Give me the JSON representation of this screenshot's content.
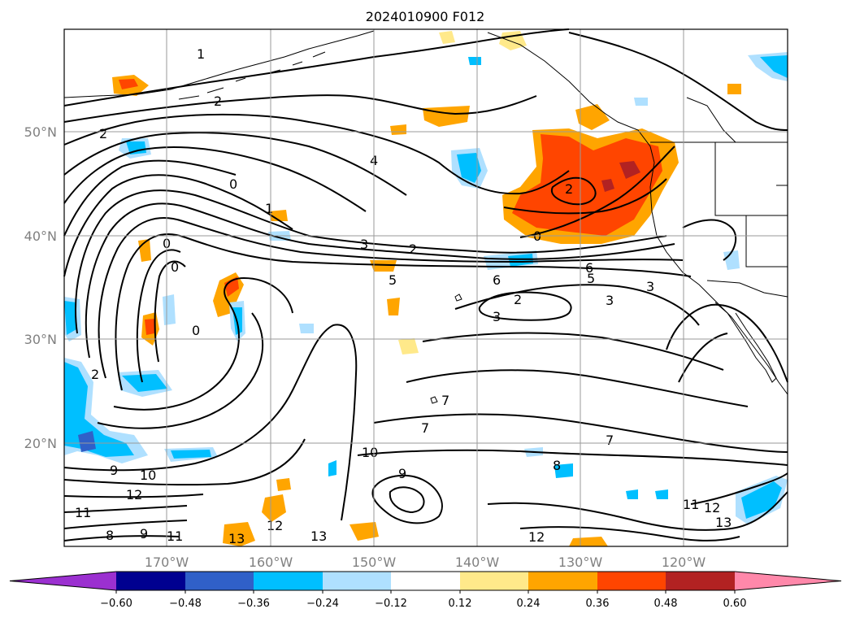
{
  "title": "2024010900 F012",
  "map": {
    "lat_labels": [
      "50°N",
      "40°N",
      "30°N",
      "20°N"
    ],
    "lon_labels": [
      "170°W",
      "160°W",
      "150°W",
      "140°W",
      "130°W",
      "120°W"
    ]
  },
  "colorbar": {
    "ticks": [
      "−0.60",
      "−0.48",
      "−0.36",
      "−0.24",
      "−0.12",
      "0.12",
      "0.24",
      "0.36",
      "0.48",
      "0.60"
    ],
    "colors": [
      "#9b30d0",
      "#000090",
      "#3060c8",
      "#00bfff",
      "#afe0ff",
      "#ffffff",
      "#ffe98a",
      "#ffa500",
      "#ff4500",
      "#b22222",
      "#ff88aa"
    ],
    "extend": "both"
  },
  "contour_labels": [
    "1",
    "2",
    "2",
    "4",
    "0",
    "1",
    "0",
    "0",
    "2",
    "0",
    "2",
    "2",
    "3",
    "5",
    "6",
    "5",
    "6",
    "2",
    "3",
    "3",
    "3",
    "7",
    "7",
    "7",
    "8",
    "9",
    "10",
    "9",
    "10",
    "12",
    "11",
    "12",
    "13",
    "12",
    "13",
    "11",
    "12",
    "13",
    "11",
    "9",
    "8",
    "0"
  ],
  "colors": {
    "contour": "#000000",
    "grid": "#9a9a9a",
    "axis_labels": "#808080"
  }
}
